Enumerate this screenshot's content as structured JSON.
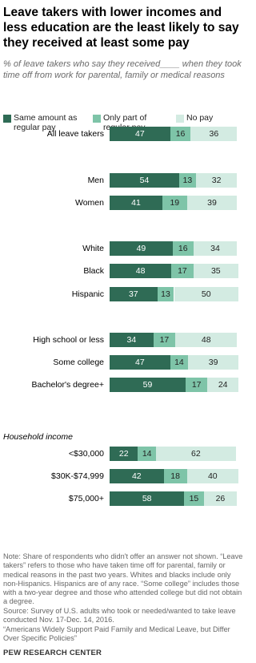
{
  "chart_data": {
    "type": "stacked-bar-horizontal",
    "title": "Leave takers with lower incomes and less education are the least likely to say they received at least some pay",
    "subtitle": "% of leave takers who say they received____ when they took time off from work for parental, family or medical reasons",
    "categories": [
      "All leave takers",
      "Men",
      "Women",
      "White",
      "Black",
      "Hispanic",
      "High school or less",
      "Some college",
      "Bachelor's degree+",
      "<$30,000",
      "$30K-$74,999",
      "$75,000+"
    ],
    "group_label": "Household income",
    "series": [
      {
        "name": "Same amount as regular pay",
        "color": "#2f6b55",
        "values": [
          47,
          54,
          41,
          49,
          48,
          37,
          34,
          47,
          59,
          22,
          42,
          58
        ]
      },
      {
        "name": "Only part of regular pay",
        "color": "#7ec4a8",
        "values": [
          16,
          13,
          19,
          16,
          17,
          13,
          17,
          14,
          17,
          14,
          18,
          15
        ]
      },
      {
        "name": "No pay",
        "color": "#d3ebe2",
        "values": [
          36,
          32,
          39,
          34,
          35,
          50,
          48,
          39,
          24,
          62,
          40,
          26
        ]
      }
    ],
    "note": "Note: Share of respondents who didn't offer an answer not shown. “Leave takers” refers to those who have taken time off for parental, family or medical reasons in the past two years. Whites and blacks include only non-Hispanics. Hispanics are of any race. “Some college” includes those with a two-year degree and those who attended college but did not obtain a degree.",
    "source": "Source: Survey of U.S. adults who took or needed/wanted to take leave conducted Nov. 17-Dec. 14, 2016.",
    "report": "“Americans Widely Support Paid Family and Medical Leave, but Differ Over Specific Policies”",
    "footer": "PEW RESEARCH CENTER"
  }
}
